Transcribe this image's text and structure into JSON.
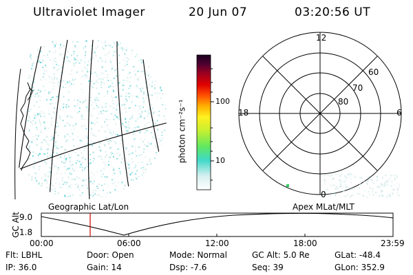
{
  "header": {
    "instrument": "Ultraviolet Imager",
    "date": "20 Jun 07",
    "time": "03:20:56 UT"
  },
  "colorbar": {
    "unit_label": "photon cm⁻²s⁻¹",
    "ticks": [
      "100",
      "10"
    ]
  },
  "polar_plot": {
    "mlt_labels": [
      "12",
      "18",
      "6",
      "0"
    ],
    "lat_labels": [
      "60",
      "70",
      "80"
    ]
  },
  "panel_labels": {
    "left": "Geographic Lat/Lon",
    "right": "Apex MLat/MLT"
  },
  "alt_plot": {
    "axis_label": "GC Alt",
    "y_ticks": [
      "9.0",
      "1.8"
    ],
    "x_ticks": [
      "00:00",
      "06:00",
      "12:00",
      "18:00",
      "23:59"
    ]
  },
  "params": {
    "flt": "Flt: LBHL",
    "ip": "IP: 36.0",
    "door": "Door: Open",
    "gain": "Gain: 14",
    "mode": "Mode: Normal",
    "dsp": "Dsp:    -7.6",
    "gc_alt": "GC Alt: 5.0 Re",
    "seq": "Seq: 39",
    "glat": "GLat: -48.4",
    "glon": "GLon: 352.9"
  },
  "colors": {
    "cursor_line": "#cc0000",
    "speckle": "#7fd6d6",
    "speckle_bright": "#20c8d0"
  }
}
